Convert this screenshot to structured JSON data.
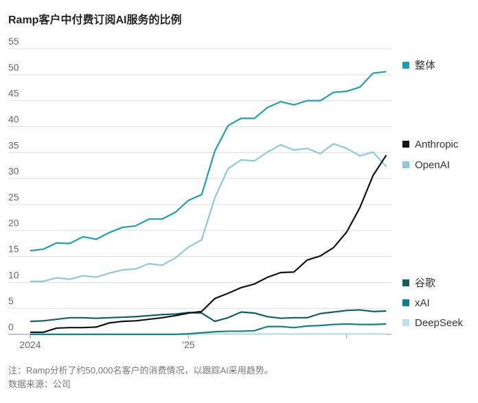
{
  "chart_data": {
    "type": "line",
    "title": "Ramp客户中付费订阅AI服务的比例",
    "note": "注：Ramp分析了约50,000名客户的消费情况，以跟踪AI采用趋势。",
    "source": "数据来源：公司",
    "categories": [
      "2024",
      null,
      null,
      null,
      null,
      null,
      null,
      null,
      null,
      null,
      null,
      null,
      "'25",
      null,
      null,
      null,
      null,
      null,
      null,
      null,
      null,
      null,
      null,
      null,
      null,
      null,
      null,
      null
    ],
    "ylim": [
      0,
      55
    ],
    "yticks": [
      0,
      5,
      10,
      15,
      20,
      25,
      30,
      35,
      40,
      45,
      50,
      55
    ],
    "grid": true,
    "series": [
      {
        "name": "整体",
        "color": "#1a9fb5",
        "values": [
          16.1,
          16.4,
          17.6,
          17.5,
          18.8,
          18.3,
          19.6,
          20.6,
          20.9,
          22.2,
          22.2,
          23.5,
          25.8,
          26.9,
          35.3,
          40.2,
          41.6,
          41.6,
          43.7,
          44.8,
          44.2,
          45.0,
          45.0,
          46.6,
          46.8,
          47.6,
          50.3,
          50.6
        ]
      },
      {
        "name": "Anthropic",
        "color": "#111111",
        "values": [
          0.4,
          0.4,
          1.2,
          1.3,
          1.3,
          1.4,
          2.2,
          2.5,
          2.6,
          2.9,
          3.2,
          3.6,
          4.1,
          4.4,
          6.9,
          7.9,
          9.0,
          9.7,
          11.0,
          11.9,
          12.0,
          14.3,
          15.1,
          16.7,
          19.7,
          24.4,
          30.6,
          34.5
        ]
      },
      {
        "name": "OpenAI",
        "color": "#8cc8d8",
        "values": [
          10.2,
          10.2,
          10.9,
          10.6,
          11.3,
          11.0,
          11.8,
          12.4,
          12.6,
          13.6,
          13.3,
          14.7,
          16.8,
          18.2,
          26.3,
          31.9,
          33.6,
          33.4,
          35.1,
          36.5,
          35.5,
          35.8,
          34.8,
          36.7,
          35.8,
          34.4,
          35.1,
          32.3
        ]
      },
      {
        "name": "谷歌",
        "color": "#0e5e62",
        "values": [
          2.5,
          2.6,
          2.9,
          3.2,
          3.2,
          3.1,
          3.2,
          3.3,
          3.4,
          3.6,
          3.8,
          3.9,
          4.2,
          4.1,
          2.5,
          3.2,
          4.3,
          4.1,
          3.4,
          3.1,
          3.2,
          3.2,
          4.0,
          4.3,
          4.6,
          4.7,
          4.4,
          4.5
        ]
      },
      {
        "name": "xAI",
        "color": "#12808a",
        "values": [
          0,
          0,
          0,
          0,
          0,
          0,
          0,
          0,
          0,
          0,
          0,
          0,
          0.1,
          0.3,
          0.5,
          0.6,
          0.6,
          0.7,
          1.5,
          1.5,
          1.3,
          1.6,
          1.7,
          1.9,
          2.0,
          1.9,
          1.9,
          2.0
        ]
      },
      {
        "name": "DeepSeek",
        "color": "#bfe1ea",
        "values": [
          0,
          0,
          0,
          0,
          0,
          0,
          0,
          0,
          0,
          0,
          0,
          0,
          0,
          0.1,
          0.1,
          0.1,
          0.1,
          0.1,
          0.1,
          0.1,
          0.1,
          0.1,
          0.1,
          0.1,
          0.1,
          0.1,
          0.1,
          0.1
        ]
      }
    ]
  }
}
